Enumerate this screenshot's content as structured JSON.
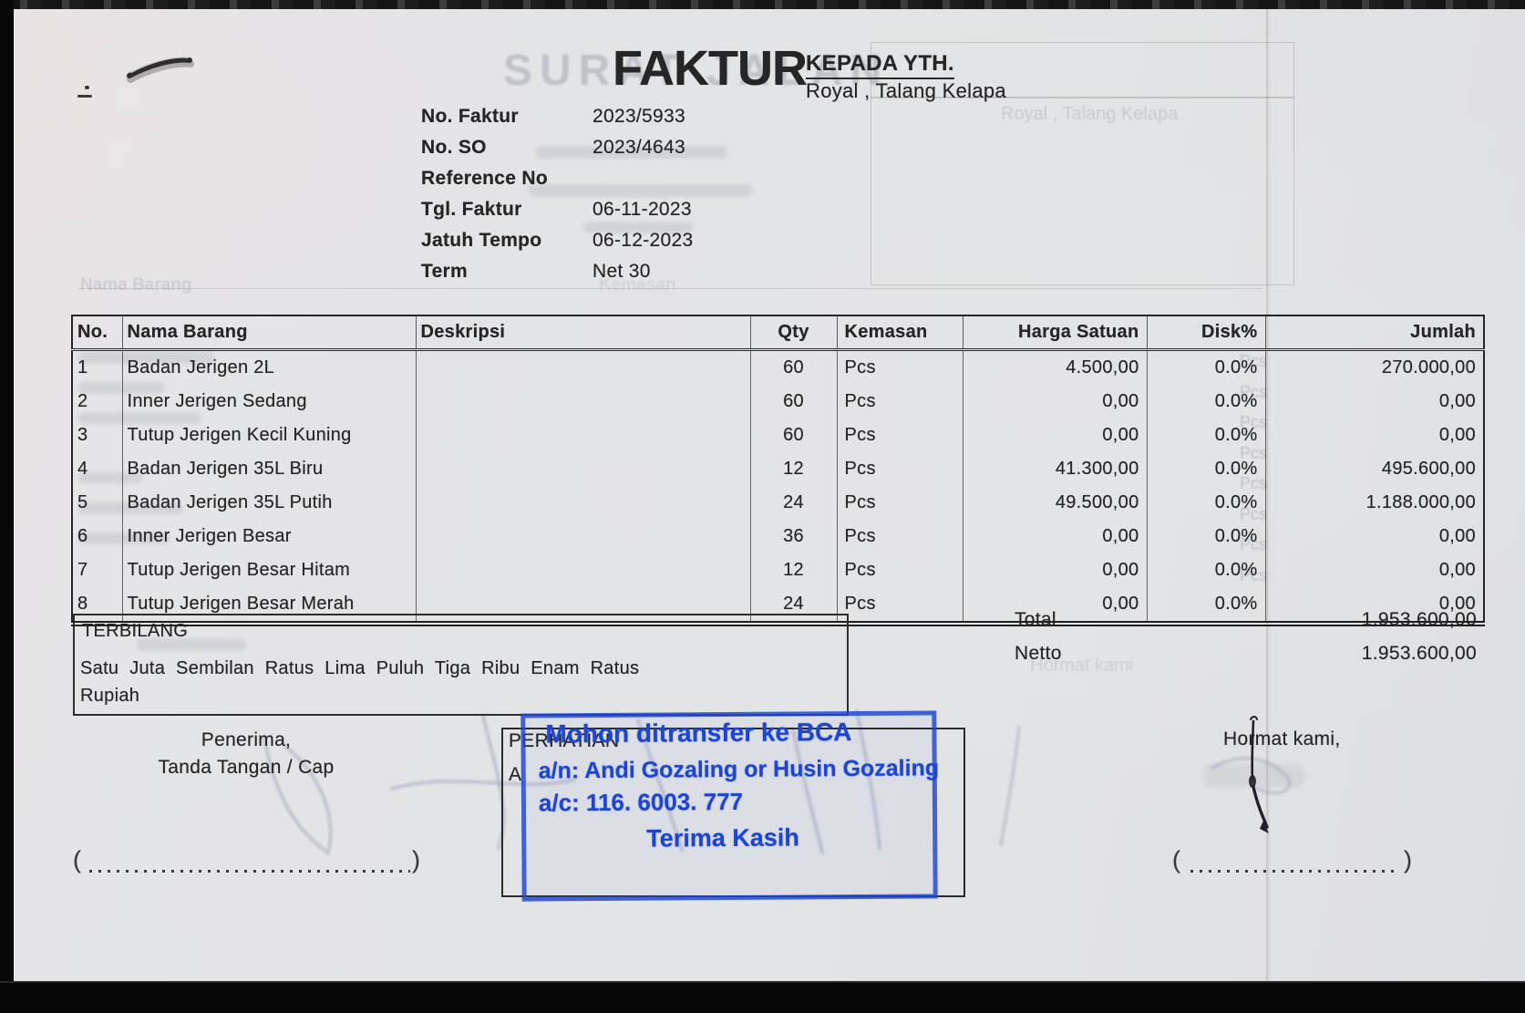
{
  "header": {
    "title": "FAKTUR",
    "recipient_label": "KEPADA YTH.",
    "recipient_name": "Royal , Talang Kelapa"
  },
  "meta": {
    "rows": [
      {
        "label": "No. Faktur",
        "value": "2023/5933"
      },
      {
        "label": "No. SO",
        "value": "2023/4643"
      },
      {
        "label": "Reference No",
        "value": ""
      },
      {
        "label": "Tgl. Faktur",
        "value": "06-11-2023"
      },
      {
        "label": "Jatuh Tempo",
        "value": "06-12-2023"
      },
      {
        "label": "Term",
        "value": "Net 30"
      }
    ]
  },
  "table": {
    "columns": [
      "No.",
      "Nama Barang",
      "Deskripsi",
      "Qty",
      "Kemasan",
      "Harga Satuan",
      "Disk%",
      "Jumlah"
    ],
    "items": [
      {
        "no": "1",
        "name": "Badan Jerigen 2L",
        "desc": "",
        "qty": "60",
        "unit": "Pcs",
        "price": "4.500,00",
        "disc": "0.0%",
        "amount": "270.000,00"
      },
      {
        "no": "2",
        "name": "Inner Jerigen Sedang",
        "desc": "",
        "qty": "60",
        "unit": "Pcs",
        "price": "0,00",
        "disc": "0.0%",
        "amount": "0,00"
      },
      {
        "no": "3",
        "name": "Tutup Jerigen Kecil Kuning",
        "desc": "",
        "qty": "60",
        "unit": "Pcs",
        "price": "0,00",
        "disc": "0.0%",
        "amount": "0,00"
      },
      {
        "no": "4",
        "name": "Badan Jerigen 35L Biru",
        "desc": "",
        "qty": "12",
        "unit": "Pcs",
        "price": "41.300,00",
        "disc": "0.0%",
        "amount": "495.600,00"
      },
      {
        "no": "5",
        "name": "Badan Jerigen 35L Putih",
        "desc": "",
        "qty": "24",
        "unit": "Pcs",
        "price": "49.500,00",
        "disc": "0.0%",
        "amount": "1.188.000,00"
      },
      {
        "no": "6",
        "name": "Inner Jerigen Besar",
        "desc": "",
        "qty": "36",
        "unit": "Pcs",
        "price": "0,00",
        "disc": "0.0%",
        "amount": "0,00"
      },
      {
        "no": "7",
        "name": "Tutup Jerigen Besar Hitam",
        "desc": "",
        "qty": "12",
        "unit": "Pcs",
        "price": "0,00",
        "disc": "0.0%",
        "amount": "0,00"
      },
      {
        "no": "8",
        "name": "Tutup Jerigen Besar Merah",
        "desc": "",
        "qty": "24",
        "unit": "Pcs",
        "price": "0,00",
        "disc": "0.0%",
        "amount": "0,00"
      }
    ]
  },
  "summary": {
    "total_label": "Total",
    "total_value": "1.953.600,00",
    "netto_label": "Netto",
    "netto_value": "1.953.600,00"
  },
  "terbilang": {
    "label": "TERBILANG",
    "line1": "Satu Juta Sembilan Ratus Lima Puluh Tiga Ribu Enam Ratus",
    "line2": "Rupiah"
  },
  "signatures": {
    "left_line1": "Penerima,",
    "left_line2": "Tanda Tangan / Cap",
    "right_label": "Hormat kami,",
    "paren_open": "(",
    "paren_close": ")"
  },
  "notice": {
    "line1": "PERHATIAN",
    "line2_visible": "A"
  },
  "stamp": {
    "line1": "Mohon ditransfer ke BCA",
    "line2": "a/n: Andi Gozaling or Husin Gozaling",
    "line3": "a/c: 116. 6003. 777",
    "line4": "Terima Kasih",
    "ink_color": "#1c46d0"
  },
  "ghosts": {
    "watermark": "SURAT JALAN",
    "address": "Royal , Talang Kelapa",
    "table_header_left": "Nama Barang",
    "table_header_mid": "Kemasan",
    "hormat": "Hormat kami",
    "pcs": "Pcs"
  },
  "colors": {
    "paper": "#e3e4e6",
    "ink": "#262626",
    "stamp_blue": "#1c46d0"
  }
}
